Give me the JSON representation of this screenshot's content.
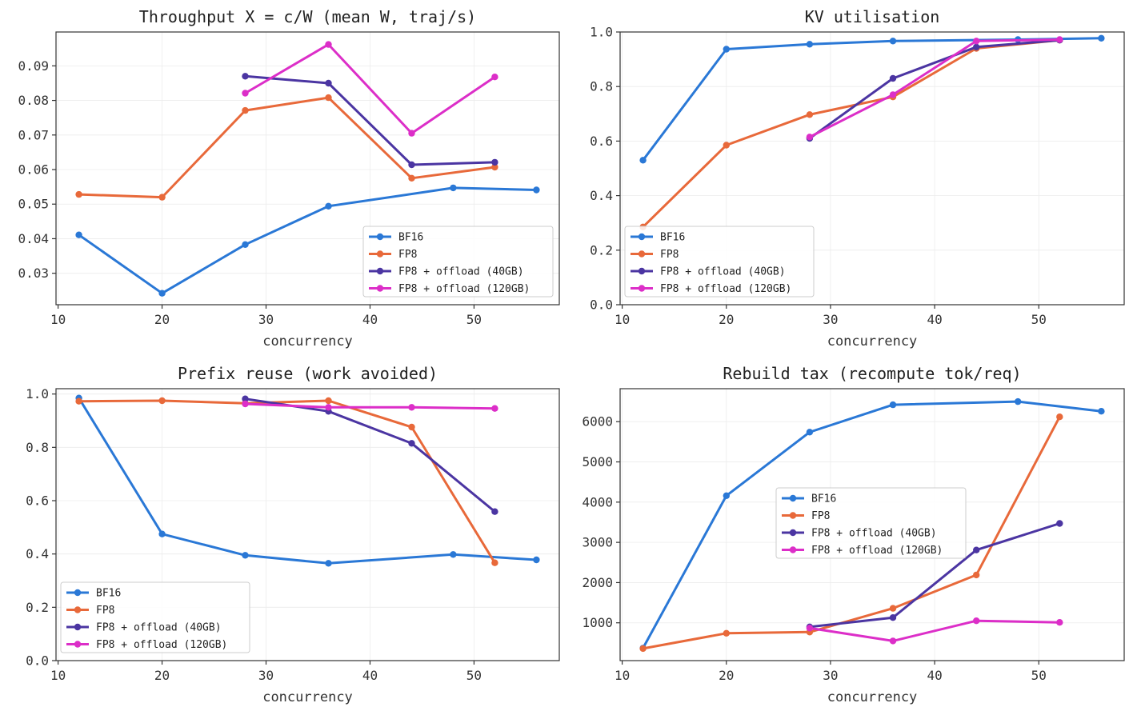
{
  "colors": {
    "BF16": "#2a78d6",
    "FP8": "#e8693a",
    "FP8 + offload (40GB)": "#4b35a2",
    "FP8 + offload (120GB)": "#dc2ec8"
  },
  "chart_data": [
    {
      "type": "line",
      "title": "Throughput X = c/W (mean W, traj/s)",
      "xlabel": "concurrency",
      "ylabel": "",
      "xlim": [
        9.8,
        58.2
      ],
      "ylim": [
        0.0209,
        0.0998
      ],
      "xticks": [
        10,
        20,
        30,
        40,
        50
      ],
      "yticks": [
        0.03,
        0.04,
        0.05,
        0.06,
        0.07,
        0.08,
        0.09
      ],
      "ytick_labels": [
        "0.03",
        "0.04",
        "0.05",
        "0.06",
        "0.07",
        "0.08",
        "0.09"
      ],
      "grid": true,
      "legend": "lower-right",
      "series": [
        {
          "name": "BF16",
          "x": [
            12,
            20,
            28,
            36,
            48,
            56
          ],
          "y": [
            0.0411,
            0.0242,
            0.0383,
            0.0494,
            0.0547,
            0.0541
          ]
        },
        {
          "name": "FP8",
          "x": [
            12,
            20,
            28,
            36,
            44,
            52
          ],
          "y": [
            0.0528,
            0.052,
            0.0771,
            0.0808,
            0.0575,
            0.0607
          ]
        },
        {
          "name": "FP8 + offload (40GB)",
          "x": [
            28,
            36,
            44,
            52
          ],
          "y": [
            0.087,
            0.085,
            0.0614,
            0.0621
          ]
        },
        {
          "name": "FP8 + offload (120GB)",
          "x": [
            28,
            36,
            44,
            52
          ],
          "y": [
            0.0821,
            0.0962,
            0.0705,
            0.0868
          ]
        }
      ]
    },
    {
      "type": "line",
      "title": "KV utilisation",
      "xlabel": "concurrency",
      "ylabel": "",
      "xlim": [
        9.8,
        58.2
      ],
      "ylim": [
        0.0,
        1.0
      ],
      "xticks": [
        10,
        20,
        30,
        40,
        50
      ],
      "yticks": [
        0.0,
        0.2,
        0.4,
        0.6,
        0.8,
        1.0
      ],
      "ytick_labels": [
        "0.0",
        "0.2",
        "0.4",
        "0.6",
        "0.8",
        "1.0"
      ],
      "grid": true,
      "legend": "lower-left",
      "series": [
        {
          "name": "BF16",
          "x": [
            12,
            20,
            28,
            36,
            48,
            56
          ],
          "y": [
            0.53,
            0.937,
            0.955,
            0.967,
            0.972,
            0.977
          ]
        },
        {
          "name": "FP8",
          "x": [
            12,
            20,
            28,
            36,
            44,
            52
          ],
          "y": [
            0.285,
            0.585,
            0.697,
            0.762,
            0.94,
            0.97
          ]
        },
        {
          "name": "FP8 + offload (40GB)",
          "x": [
            28,
            36,
            44,
            52
          ],
          "y": [
            0.61,
            0.83,
            0.945,
            0.97
          ]
        },
        {
          "name": "FP8 + offload (120GB)",
          "x": [
            28,
            36,
            44,
            52
          ],
          "y": [
            0.615,
            0.77,
            0.967,
            0.972
          ]
        }
      ]
    },
    {
      "type": "line",
      "title": "Prefix reuse (work avoided)",
      "xlabel": "concurrency",
      "ylabel": "",
      "xlim": [
        9.8,
        58.2
      ],
      "ylim": [
        0.0,
        1.02
      ],
      "xticks": [
        10,
        20,
        30,
        40,
        50
      ],
      "yticks": [
        0.0,
        0.2,
        0.4,
        0.6,
        0.8,
        1.0
      ],
      "ytick_labels": [
        "0.0",
        "0.2",
        "0.4",
        "0.6",
        "0.8",
        "1.0"
      ],
      "grid": true,
      "legend": "lower-left",
      "series": [
        {
          "name": "BF16",
          "x": [
            12,
            20,
            28,
            36,
            48,
            56
          ],
          "y": [
            0.985,
            0.475,
            0.395,
            0.365,
            0.398,
            0.378
          ]
        },
        {
          "name": "FP8",
          "x": [
            12,
            20,
            28,
            36,
            44,
            52
          ],
          "y": [
            0.973,
            0.975,
            0.965,
            0.975,
            0.876,
            0.367
          ]
        },
        {
          "name": "FP8 + offload (40GB)",
          "x": [
            28,
            36,
            44,
            52
          ],
          "y": [
            0.982,
            0.935,
            0.815,
            0.559
          ]
        },
        {
          "name": "FP8 + offload (120GB)",
          "x": [
            28,
            36,
            44,
            52
          ],
          "y": [
            0.963,
            0.95,
            0.95,
            0.946
          ]
        }
      ]
    },
    {
      "type": "line",
      "title": "Rebuild tax (recompute tok/req)",
      "xlabel": "concurrency",
      "ylabel": "",
      "xlim": [
        9.8,
        58.2
      ],
      "ylim": [
        60,
        6820
      ],
      "xticks": [
        10,
        20,
        30,
        40,
        50
      ],
      "yticks": [
        1000,
        2000,
        3000,
        4000,
        5000,
        6000
      ],
      "ytick_labels": [
        "1000",
        "2000",
        "3000",
        "4000",
        "5000",
        "6000"
      ],
      "grid": true,
      "legend": "center",
      "series": [
        {
          "name": "BF16",
          "x": [
            12,
            20,
            28,
            36,
            48,
            56
          ],
          "y": [
            370,
            4160,
            5740,
            6420,
            6500,
            6260
          ]
        },
        {
          "name": "FP8",
          "x": [
            12,
            20,
            28,
            36,
            44,
            52
          ],
          "y": [
            360,
            740,
            770,
            1360,
            2190,
            6120
          ]
        },
        {
          "name": "FP8 + offload (40GB)",
          "x": [
            28,
            36,
            44,
            52
          ],
          "y": [
            900,
            1130,
            2810,
            3470
          ]
        },
        {
          "name": "FP8 + offload (120GB)",
          "x": [
            28,
            36,
            44,
            52
          ],
          "y": [
            870,
            550,
            1050,
            1010
          ]
        }
      ]
    }
  ]
}
